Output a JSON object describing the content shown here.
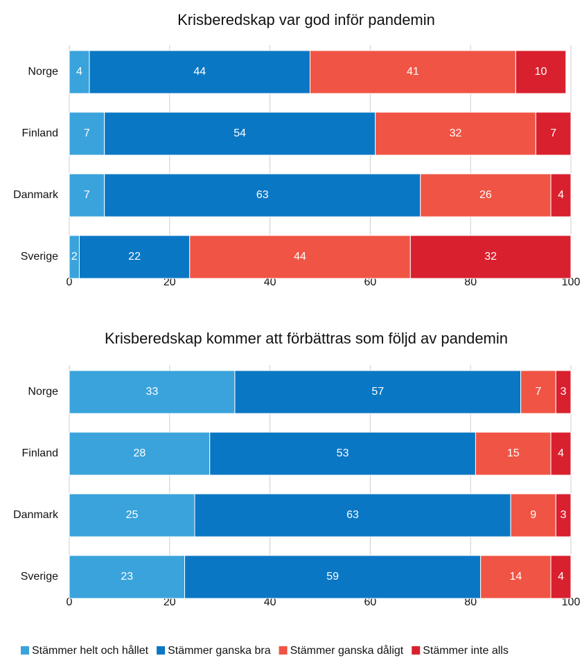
{
  "chart_data": [
    {
      "type": "stacked-bar-horizontal",
      "title": "Krisberedskap var god inför pandemin",
      "categories": [
        "Norge",
        "Finland",
        "Danmark",
        "Sverige"
      ],
      "series": [
        {
          "name": "Stämmer helt och hållet",
          "color": "#3aa3dc",
          "values": [
            4,
            7,
            7,
            2
          ]
        },
        {
          "name": "Stämmer ganska bra",
          "color": "#0a77c4",
          "values": [
            44,
            54,
            63,
            22
          ]
        },
        {
          "name": "Stämmer ganska dåligt",
          "color": "#f05444",
          "values": [
            41,
            32,
            26,
            44
          ]
        },
        {
          "name": "Stämmer inte alls",
          "color": "#d9202e",
          "values": [
            10,
            7,
            4,
            32
          ]
        }
      ],
      "xlim": [
        0,
        100
      ],
      "xticks": [
        0,
        20,
        40,
        60,
        80,
        100
      ],
      "grid": true,
      "legend": "bottom"
    },
    {
      "type": "stacked-bar-horizontal",
      "title": "Krisberedskap kommer att förbättras som följd av pandemin",
      "categories": [
        "Norge",
        "Finland",
        "Danmark",
        "Sverige"
      ],
      "series": [
        {
          "color": "#3aa3dc",
          "values": [
            33,
            28,
            25,
            23
          ]
        },
        {
          "color": "#0a77c4",
          "values": [
            57,
            53,
            63,
            59
          ]
        },
        {
          "color": "#f05444",
          "values": [
            7,
            15,
            9,
            14
          ]
        },
        {
          "color": "#d9202e",
          "values": [
            3,
            4,
            3,
            4
          ]
        }
      ],
      "xlim": [
        0,
        100
      ],
      "xticks": [
        0,
        20,
        40,
        60,
        80,
        100
      ],
      "grid": true
    }
  ]
}
